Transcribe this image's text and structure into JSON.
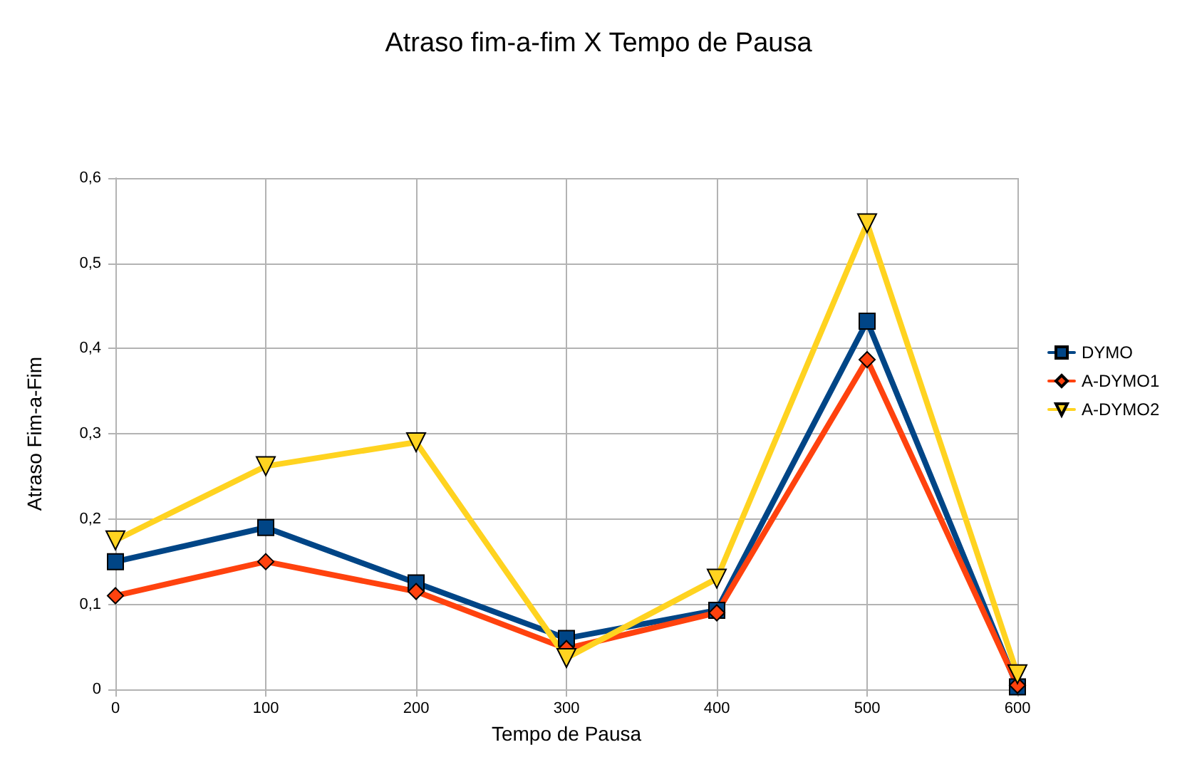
{
  "chart_data": {
    "type": "line",
    "title": "Atraso fim-a-fim X Tempo de Pausa",
    "xlabel": "Tempo de Pausa",
    "ylabel": "Atraso Fim-a-Fim",
    "x": [
      0,
      100,
      200,
      300,
      400,
      500,
      600
    ],
    "series": [
      {
        "name": "DYMO",
        "color": "#004586",
        "marker": "square",
        "values": [
          0.15,
          0.19,
          0.125,
          0.06,
          0.093,
          0.432,
          0.003
        ]
      },
      {
        "name": "A-DYMO1",
        "color": "#ff420e",
        "marker": "diamond",
        "values": [
          0.11,
          0.15,
          0.115,
          0.048,
          0.09,
          0.387,
          0.005
        ]
      },
      {
        "name": "A-DYMO2",
        "color": "#ffd320",
        "marker": "triangle",
        "values": [
          0.175,
          0.262,
          0.29,
          0.037,
          0.13,
          0.547,
          0.018
        ]
      }
    ],
    "xlim": [
      0,
      600
    ],
    "xticks": [
      0,
      100,
      200,
      300,
      400,
      500,
      600
    ],
    "ylim": [
      0,
      0.6
    ],
    "yticks": [
      0,
      {
        "value": 0.1,
        "label": "0,1"
      },
      {
        "value": 0.2,
        "label": "0,2"
      },
      {
        "value": 0.3,
        "label": "0,3"
      },
      {
        "value": 0.4,
        "label": "0,4"
      },
      {
        "value": 0.5,
        "label": "0,5"
      },
      {
        "value": 0.6,
        "label": "0,6"
      }
    ],
    "grid": true,
    "legend": "right",
    "line_style": "solid"
  }
}
